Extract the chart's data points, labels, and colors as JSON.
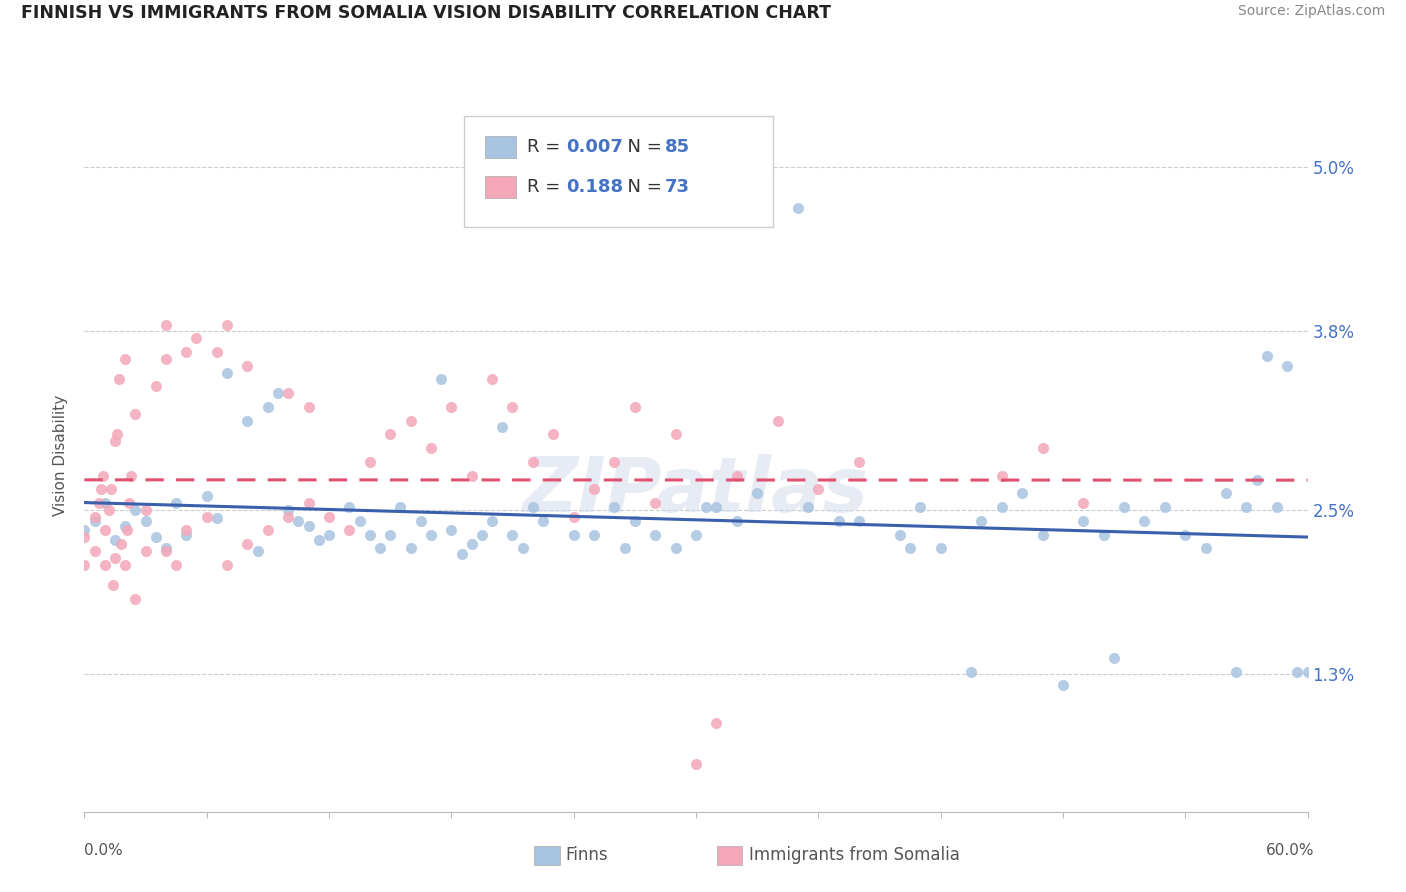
{
  "title": "FINNISH VS IMMIGRANTS FROM SOMALIA VISION DISABILITY CORRELATION CHART",
  "source": "Source: ZipAtlas.com",
  "ylabel": "Vision Disability",
  "yticks": [
    1.3,
    2.5,
    3.8,
    5.0
  ],
  "ytick_labels": [
    "1.3%",
    "2.5%",
    "3.8%",
    "5.0%"
  ],
  "xmin": 0.0,
  "xmax": 0.6,
  "ymin": 0.3,
  "ymax": 5.5,
  "finn_color": "#a8c4e0",
  "somalia_color": "#f4a7b9",
  "finn_line_color": "#3a5fac",
  "somalia_line_color": "#e05070",
  "watermark": "ZIPatlas",
  "finn_scatter": [
    [
      0.0,
      2.35
    ],
    [
      0.005,
      2.42
    ],
    [
      0.01,
      2.55
    ],
    [
      0.015,
      2.28
    ],
    [
      0.02,
      2.38
    ],
    [
      0.025,
      2.5
    ],
    [
      0.03,
      2.42
    ],
    [
      0.035,
      2.3
    ],
    [
      0.04,
      2.22
    ],
    [
      0.045,
      2.55
    ],
    [
      0.05,
      2.32
    ],
    [
      0.06,
      2.6
    ],
    [
      0.065,
      2.44
    ],
    [
      0.07,
      3.5
    ],
    [
      0.08,
      3.15
    ],
    [
      0.085,
      2.2
    ],
    [
      0.09,
      3.25
    ],
    [
      0.095,
      3.35
    ],
    [
      0.1,
      2.5
    ],
    [
      0.105,
      2.42
    ],
    [
      0.11,
      2.38
    ],
    [
      0.115,
      2.28
    ],
    [
      0.12,
      2.32
    ],
    [
      0.13,
      2.52
    ],
    [
      0.135,
      2.42
    ],
    [
      0.14,
      2.32
    ],
    [
      0.145,
      2.22
    ],
    [
      0.15,
      2.32
    ],
    [
      0.155,
      2.52
    ],
    [
      0.16,
      2.22
    ],
    [
      0.165,
      2.42
    ],
    [
      0.17,
      2.32
    ],
    [
      0.175,
      3.45
    ],
    [
      0.18,
      2.35
    ],
    [
      0.185,
      2.18
    ],
    [
      0.19,
      2.25
    ],
    [
      0.195,
      2.32
    ],
    [
      0.2,
      2.42
    ],
    [
      0.205,
      3.1
    ],
    [
      0.21,
      2.32
    ],
    [
      0.215,
      2.22
    ],
    [
      0.22,
      2.52
    ],
    [
      0.225,
      2.42
    ],
    [
      0.24,
      2.32
    ],
    [
      0.25,
      2.32
    ],
    [
      0.26,
      2.52
    ],
    [
      0.265,
      2.22
    ],
    [
      0.27,
      2.42
    ],
    [
      0.28,
      2.32
    ],
    [
      0.29,
      2.22
    ],
    [
      0.3,
      2.32
    ],
    [
      0.305,
      2.52
    ],
    [
      0.31,
      2.52
    ],
    [
      0.32,
      2.42
    ],
    [
      0.33,
      2.62
    ],
    [
      0.35,
      4.7
    ],
    [
      0.355,
      2.52
    ],
    [
      0.37,
      2.42
    ],
    [
      0.38,
      2.42
    ],
    [
      0.4,
      2.32
    ],
    [
      0.405,
      2.22
    ],
    [
      0.41,
      2.52
    ],
    [
      0.42,
      2.22
    ],
    [
      0.435,
      1.32
    ],
    [
      0.44,
      2.42
    ],
    [
      0.45,
      2.52
    ],
    [
      0.46,
      2.62
    ],
    [
      0.47,
      2.32
    ],
    [
      0.48,
      1.22
    ],
    [
      0.49,
      2.42
    ],
    [
      0.5,
      2.32
    ],
    [
      0.505,
      1.42
    ],
    [
      0.51,
      2.52
    ],
    [
      0.52,
      2.42
    ],
    [
      0.53,
      2.52
    ],
    [
      0.54,
      2.32
    ],
    [
      0.55,
      2.22
    ],
    [
      0.56,
      2.62
    ],
    [
      0.565,
      1.32
    ],
    [
      0.57,
      2.52
    ],
    [
      0.575,
      2.72
    ],
    [
      0.58,
      3.62
    ],
    [
      0.585,
      2.52
    ],
    [
      0.59,
      3.55
    ],
    [
      0.595,
      1.32
    ],
    [
      0.6,
      1.32
    ]
  ],
  "somalia_scatter": [
    [
      0.0,
      2.1
    ],
    [
      0.0,
      2.3
    ],
    [
      0.005,
      2.2
    ],
    [
      0.005,
      2.45
    ],
    [
      0.007,
      2.55
    ],
    [
      0.008,
      2.65
    ],
    [
      0.009,
      2.75
    ],
    [
      0.01,
      2.1
    ],
    [
      0.01,
      2.35
    ],
    [
      0.012,
      2.5
    ],
    [
      0.013,
      2.65
    ],
    [
      0.014,
      1.95
    ],
    [
      0.015,
      3.0
    ],
    [
      0.015,
      2.15
    ],
    [
      0.016,
      3.05
    ],
    [
      0.017,
      3.45
    ],
    [
      0.018,
      2.25
    ],
    [
      0.02,
      3.6
    ],
    [
      0.02,
      2.1
    ],
    [
      0.021,
      2.35
    ],
    [
      0.022,
      2.55
    ],
    [
      0.023,
      2.75
    ],
    [
      0.025,
      1.85
    ],
    [
      0.025,
      3.2
    ],
    [
      0.03,
      2.2
    ],
    [
      0.03,
      2.5
    ],
    [
      0.035,
      3.4
    ],
    [
      0.04,
      2.2
    ],
    [
      0.04,
      3.6
    ],
    [
      0.04,
      3.85
    ],
    [
      0.045,
      2.1
    ],
    [
      0.05,
      2.35
    ],
    [
      0.05,
      3.65
    ],
    [
      0.055,
      3.75
    ],
    [
      0.06,
      2.45
    ],
    [
      0.065,
      3.65
    ],
    [
      0.07,
      2.1
    ],
    [
      0.07,
      3.85
    ],
    [
      0.08,
      2.25
    ],
    [
      0.08,
      3.55
    ],
    [
      0.09,
      2.35
    ],
    [
      0.1,
      2.45
    ],
    [
      0.1,
      3.35
    ],
    [
      0.11,
      2.55
    ],
    [
      0.11,
      3.25
    ],
    [
      0.12,
      2.45
    ],
    [
      0.13,
      2.35
    ],
    [
      0.14,
      2.85
    ],
    [
      0.15,
      3.05
    ],
    [
      0.16,
      3.15
    ],
    [
      0.17,
      2.95
    ],
    [
      0.18,
      3.25
    ],
    [
      0.19,
      2.75
    ],
    [
      0.2,
      3.45
    ],
    [
      0.21,
      3.25
    ],
    [
      0.22,
      2.85
    ],
    [
      0.23,
      3.05
    ],
    [
      0.24,
      2.45
    ],
    [
      0.25,
      2.65
    ],
    [
      0.26,
      2.85
    ],
    [
      0.27,
      3.25
    ],
    [
      0.28,
      2.55
    ],
    [
      0.29,
      3.05
    ],
    [
      0.3,
      0.65
    ],
    [
      0.31,
      0.95
    ],
    [
      0.32,
      2.75
    ],
    [
      0.34,
      3.15
    ],
    [
      0.36,
      2.65
    ],
    [
      0.38,
      2.85
    ],
    [
      0.45,
      2.75
    ],
    [
      0.47,
      2.95
    ],
    [
      0.49,
      2.55
    ]
  ]
}
